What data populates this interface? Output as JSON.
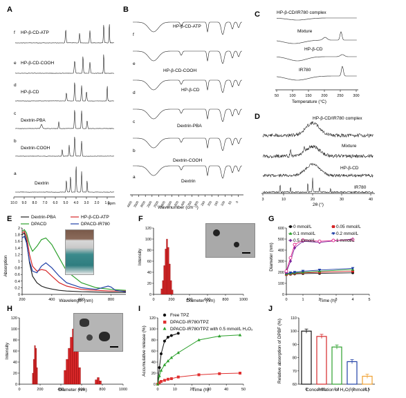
{
  "figure": {
    "panels": {
      "A": {
        "label": "A",
        "traces": [
          "f",
          "e",
          "d",
          "c",
          "b",
          "a"
        ],
        "names": [
          "HP-β-CD-ATP",
          "HP-β-CD-COOH",
          "HP-β-CD",
          "Dextrin-PBA",
          "Dextrin-COOH",
          "Dextrin"
        ],
        "xticks": [
          "10.0",
          "9.0",
          "8.0",
          "7.0",
          "6.0",
          "5.0",
          "4.0",
          "3.0",
          "2.0",
          "1.0"
        ],
        "xunit": "ppm"
      },
      "B": {
        "label": "B",
        "traces": [
          "f",
          "e",
          "d",
          "c",
          "b",
          "a"
        ],
        "names": [
          "HP-β-CD-ATP",
          "HP-β-CD-COOH",
          "HP-β-CD",
          "Dextrin-PBA",
          "Dextrin-COOH",
          "Dextrin"
        ],
        "xticks": [
          "4000",
          "3500",
          "3000",
          "2500",
          "2000",
          "1500",
          "1000",
          "500",
          "400",
          "350",
          "300",
          "250",
          "200",
          "150",
          "100",
          "50",
          "0"
        ],
        "xlabel": "Wavenumber (cm⁻¹)"
      },
      "C": {
        "label": "C",
        "names": [
          "HP-β-CD/IR780 complex",
          "Mixture",
          "HP-β-CD",
          "IR780"
        ],
        "xticks": [
          "50",
          "100",
          "150",
          "200",
          "250",
          "300"
        ],
        "xlabel": "Temperature (°C)"
      },
      "D": {
        "label": "D",
        "names": [
          "HP-β-CD/IR780 complex",
          "Mixture",
          "HP-β-CD",
          "IR780"
        ],
        "xticks": [
          "3",
          "10",
          "20",
          "30",
          "40"
        ],
        "xlabel": "2θ (°)"
      },
      "E": {
        "label": "E",
        "legend": [
          "Dextrin-PBA",
          "HP-β-CD-ATP",
          "DPACD",
          "DPACD-IR780"
        ],
        "xlabel": "Wavelength (nm)",
        "ylabel": "Absorption"
      },
      "F": {
        "label": "F",
        "xlabel": "Diameter (nm)",
        "ylabel": "Intensity"
      },
      "G": {
        "label": "G",
        "xlabel": "Time (h)",
        "ylabel": "Diameter (nm)",
        "legend": [
          "0 mmol/L",
          "0.05 mmol/L",
          "0.1 mmol/L",
          "0.2 mmol/L",
          "0.5 mmol/L",
          "1 mmol/L"
        ]
      },
      "H": {
        "label": "H",
        "xlabel": "Diameter (nm)",
        "ylabel": "Intensity"
      },
      "I": {
        "label": "I",
        "xlabel": "Time (h)",
        "ylabel": "Accumulative release (%)",
        "legend": [
          "Free TPZ",
          "DPACD-IR780/TPZ",
          "DPACD-IR780/TPZ with 0.5 mmol/L H₂O₂"
        ]
      },
      "J": {
        "label": "J",
        "xlabel": "Concentration of H₂O₂ (mmol/L)",
        "ylabel": "Relative absorption of DPBF (%)"
      }
    }
  },
  "chart_data": [
    {
      "panel": "E",
      "type": "line",
      "xlabel": "Wavelength (nm)",
      "ylabel": "Absorption",
      "xlim": [
        200,
        900
      ],
      "ylim": [
        0,
        2.0
      ],
      "xticks": [
        200,
        400,
        600,
        800
      ],
      "yticks": [
        0,
        0.2,
        0.4,
        0.6,
        0.8,
        1.0,
        1.2,
        1.4,
        1.6,
        1.8,
        2.0
      ],
      "series": [
        {
          "name": "Dextrin-PBA",
          "color": "#222222",
          "x": [
            200,
            215,
            230,
            250,
            270,
            300,
            330,
            360,
            400,
            450,
            500,
            600,
            700,
            800,
            900
          ],
          "y": [
            1.8,
            1.85,
            1.6,
            0.95,
            0.55,
            0.35,
            0.25,
            0.2,
            0.16,
            0.12,
            0.1,
            0.08,
            0.07,
            0.06,
            0.06
          ]
        },
        {
          "name": "HP-β-CD-ATP",
          "color": "#d62728",
          "x": [
            200,
            215,
            230,
            250,
            270,
            300,
            330,
            360,
            400,
            450,
            500,
            600,
            700,
            800,
            900
          ],
          "y": [
            1.85,
            1.9,
            1.75,
            1.2,
            0.85,
            0.7,
            0.75,
            0.72,
            0.55,
            0.35,
            0.25,
            0.15,
            0.12,
            0.1,
            0.1
          ]
        },
        {
          "name": "DPACD",
          "color": "#2ca02c",
          "x": [
            200,
            215,
            230,
            250,
            270,
            300,
            330,
            360,
            400,
            450,
            500,
            600,
            700,
            800,
            900
          ],
          "y": [
            1.9,
            1.95,
            1.85,
            1.5,
            1.3,
            1.45,
            1.65,
            1.7,
            1.5,
            1.1,
            0.7,
            0.35,
            0.2,
            0.15,
            0.12
          ]
        },
        {
          "name": "DPACD-IR780",
          "color": "#1f3fa6",
          "x": [
            200,
            215,
            230,
            250,
            270,
            300,
            330,
            360,
            400,
            450,
            500,
            600,
            700,
            780,
            800,
            830,
            900
          ],
          "y": [
            1.7,
            1.75,
            1.55,
            1.0,
            0.7,
            0.65,
            0.85,
            0.95,
            0.8,
            0.55,
            0.35,
            0.2,
            0.15,
            0.25,
            0.22,
            0.12,
            0.08
          ]
        }
      ]
    },
    {
      "panel": "F",
      "type": "bar",
      "xlabel": "Diameter (nm)",
      "ylabel": "Intensity",
      "xlim": [
        0,
        1000
      ],
      "ylim": [
        0,
        120
      ],
      "xticks": [
        0,
        200,
        400,
        600,
        800,
        1000
      ],
      "yticks": [
        0,
        20,
        40,
        60,
        80,
        100,
        120
      ],
      "x": [
        90,
        105,
        120,
        135,
        150,
        165,
        180,
        195,
        210
      ],
      "values": [
        10,
        25,
        52,
        82,
        100,
        85,
        55,
        25,
        8
      ]
    },
    {
      "panel": "G",
      "type": "line",
      "xlabel": "Time (h)",
      "ylabel": "Diameter (nm)",
      "xlim": [
        0,
        5
      ],
      "ylim": [
        0,
        600
      ],
      "xticks": [
        0,
        1,
        2,
        3,
        4,
        5
      ],
      "yticks": [
        0,
        100,
        200,
        300,
        400,
        500,
        600
      ],
      "x": [
        0,
        0.25,
        0.5,
        1,
        2,
        4
      ],
      "series": [
        {
          "name": "0 mmol/L",
          "color": "#111111",
          "marker": "circle",
          "y": [
            180,
            182,
            185,
            188,
            190,
            195
          ]
        },
        {
          "name": "0.05 mmol/L",
          "color": "#d62728",
          "marker": "square",
          "y": [
            180,
            185,
            190,
            195,
            200,
            210
          ]
        },
        {
          "name": "0.1 mmol/L",
          "color": "#2ca02c",
          "marker": "triangle",
          "y": [
            185,
            190,
            195,
            200,
            210,
            225
          ]
        },
        {
          "name": "0.2 mmol/L",
          "color": "#1f3fa6",
          "marker": "triangle-down",
          "y": [
            190,
            195,
            200,
            210,
            220,
            235
          ]
        },
        {
          "name": "0.5 mmol/L",
          "color": "#7b2a9e",
          "marker": "diamond",
          "y": [
            200,
            300,
            420,
            480,
            470,
            500
          ]
        },
        {
          "name": "1 mmol/L",
          "color": "#e0218a",
          "marker": "circle-open",
          "y": [
            210,
            330,
            450,
            490,
            480,
            495
          ]
        }
      ]
    },
    {
      "panel": "H",
      "type": "bar",
      "xlabel": "Diameter (nm)",
      "ylabel": "Intensity",
      "xlim": [
        0,
        1000
      ],
      "ylim": [
        0,
        120
      ],
      "xticks": [
        0,
        200,
        400,
        600,
        800,
        1000
      ],
      "yticks": [
        0,
        20,
        40,
        60,
        80,
        100,
        120
      ],
      "x": [
        130,
        140,
        150,
        160,
        170,
        440,
        460,
        480,
        500,
        520,
        540,
        560,
        580,
        740,
        760,
        780
      ],
      "values": [
        20,
        45,
        70,
        65,
        30,
        25,
        45,
        65,
        85,
        100,
        95,
        60,
        30,
        8,
        12,
        6
      ]
    },
    {
      "panel": "I",
      "type": "line",
      "xlabel": "Time (h)",
      "ylabel": "Accumulative release (%)",
      "xlim": [
        0,
        50
      ],
      "ylim": [
        0,
        120
      ],
      "xticks": [
        0,
        10,
        20,
        30,
        40,
        50
      ],
      "yticks": [
        0,
        20,
        40,
        60,
        80,
        100,
        120
      ],
      "series": [
        {
          "name": "Free TPZ",
          "color": "#111111",
          "x": [
            0,
            1,
            2,
            4,
            6,
            8,
            12
          ],
          "y": [
            0,
            30,
            55,
            78,
            85,
            88,
            92
          ]
        },
        {
          "name": "DPACD-IR780/TPZ",
          "color": "#e03030",
          "x": [
            0,
            1,
            2,
            4,
            6,
            8,
            12,
            24,
            36,
            48
          ],
          "y": [
            0,
            3,
            5,
            7,
            9,
            10,
            13,
            17,
            19,
            20
          ]
        },
        {
          "name": "DPACD-IR780/TPZ with 0.5 mmol/L H₂O₂",
          "color": "#2ca02c",
          "x": [
            0,
            1,
            2,
            4,
            6,
            8,
            12,
            24,
            36,
            48
          ],
          "y": [
            0,
            15,
            25,
            35,
            42,
            48,
            57,
            80,
            87,
            89
          ]
        }
      ]
    },
    {
      "panel": "J",
      "type": "bar",
      "xlabel": "Concentration of H₂O₂ (mmol/L)",
      "ylabel": "Relative absorption of DPBF (%)",
      "ylim": [
        60,
        110
      ],
      "yticks": [
        60,
        70,
        80,
        90,
        100,
        110
      ],
      "categories": [
        "0",
        "0.05",
        "0.1",
        "0.2",
        "0.5"
      ],
      "values": [
        100,
        96,
        88,
        77,
        66
      ],
      "colors": [
        "#111111",
        "#d62728",
        "#2ca02c",
        "#1f3fa6",
        "#f0a030"
      ]
    }
  ]
}
